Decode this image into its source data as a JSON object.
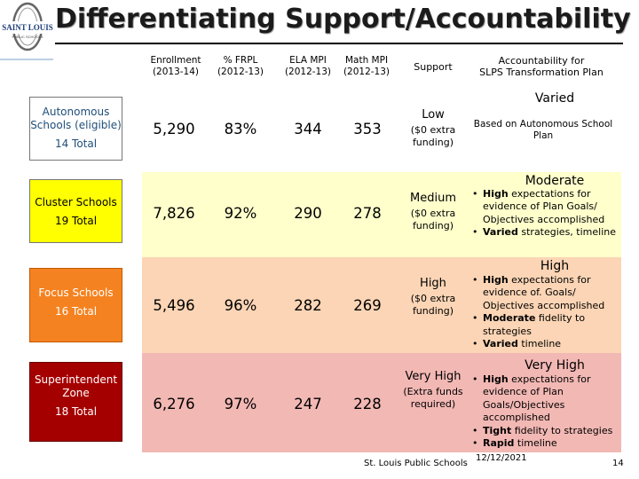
{
  "logo": {
    "line1": "SAINT LOUIS",
    "line2": "PUBLIC SCHOOLS"
  },
  "title": "Differentiating Support/Accountability",
  "headers": {
    "enrollment": [
      "Enrollment",
      "(2013-14)"
    ],
    "frpl": [
      "% FRPL",
      "(2012-13)"
    ],
    "ela": [
      "ELA MPI",
      "(2012-13)"
    ],
    "math": [
      "Math MPI",
      "(2012-13)"
    ],
    "support": "Support",
    "accountability": [
      "Accountability for",
      "SLPS Transformation Plan"
    ]
  },
  "rows": [
    {
      "name": "Autonomous Schools (eligible)",
      "total": "14 Total",
      "enrollment": "5,290",
      "frpl": "83%",
      "ela": "344",
      "math": "353",
      "support_level": "Low",
      "support_note": "($0 extra funding)",
      "acc_level": "Varied",
      "acc_text": "Based on Autonomous School Plan",
      "colors": {
        "band": "#ffffff",
        "label_bg": "#ffffff",
        "label_text": "#1f4e79"
      }
    },
    {
      "name": "Cluster Schools",
      "total": "19 Total",
      "enrollment": "7,826",
      "frpl": "92%",
      "ela": "290",
      "math": "278",
      "support_level": "Medium",
      "support_note": "($0 extra funding)",
      "acc_level": "Moderate",
      "acc_bullets": [
        {
          "bold": "High",
          "rest": " expectations for evidence of  Plan Goals/ Objectives accomplished"
        },
        {
          "bold": "Varied",
          "rest": " strategies, timeline"
        }
      ],
      "colors": {
        "band": "#ffffcc",
        "label_bg": "#ffff00",
        "label_text": "#000000"
      }
    },
    {
      "name": "Focus Schools",
      "total": "16 Total",
      "enrollment": "5,496",
      "frpl": "96%",
      "ela": "282",
      "math": "269",
      "support_level": "High",
      "support_note": "($0 extra funding)",
      "acc_level": "High",
      "acc_bullets": [
        {
          "bold": "High",
          "rest": " expectations for evidence of. Goals/ Objectives accomplished"
        },
        {
          "bold": "Moderate",
          "rest": " fidelity to strategies"
        },
        {
          "bold": "Varied",
          "rest": " timeline"
        }
      ],
      "colors": {
        "band": "#fbd5b5",
        "label_bg": "#f58220",
        "label_text": "#ffffff"
      }
    },
    {
      "name": "Superintendent Zone",
      "total": "18 Total",
      "enrollment": "6,276",
      "frpl": "97%",
      "ela": "247",
      "math": "228",
      "support_level": "Very High",
      "support_note": "(Extra funds required)",
      "acc_level": "Very High",
      "acc_bullets": [
        {
          "bold": "High",
          "rest": " expectations for evidence of Plan Goals/Objectives accomplished"
        },
        {
          "bold": "Tight",
          "rest": " fidelity to strategies"
        },
        {
          "bold": "Rapid",
          "rest": " timeline"
        }
      ],
      "colors": {
        "band": "#f2b8b4",
        "label_bg": "#a50000",
        "label_text": "#ffffff"
      }
    }
  ],
  "footer": {
    "org": "St. Louis Public Schools",
    "date": "12/12/2021",
    "page": "14"
  }
}
